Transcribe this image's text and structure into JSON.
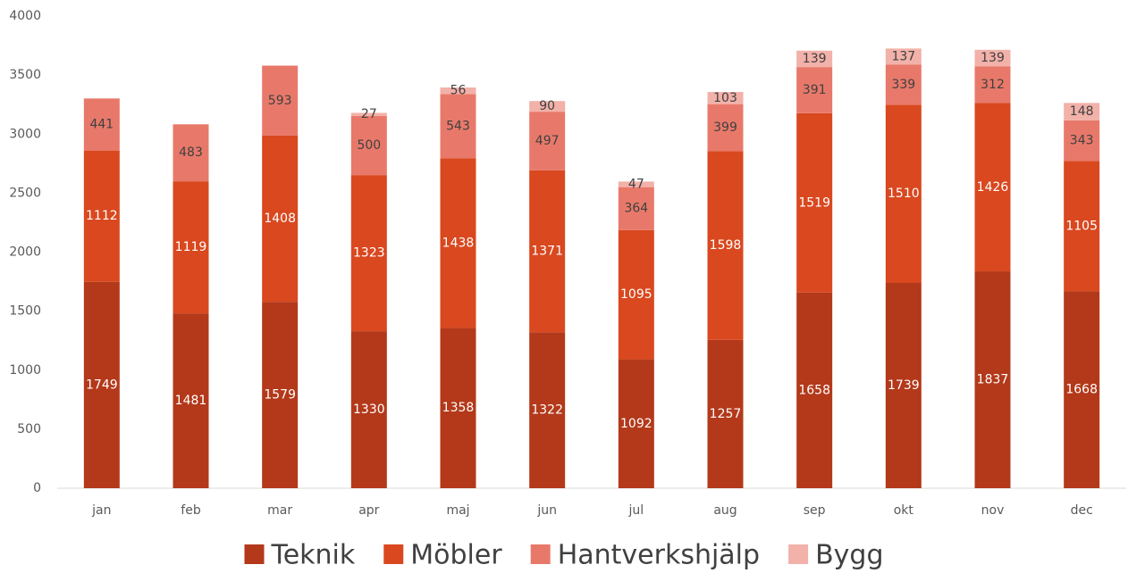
{
  "chart_data": {
    "type": "stacked_bar",
    "categories": [
      "jan",
      "feb",
      "mar",
      "apr",
      "maj",
      "jun",
      "jul",
      "aug",
      "sep",
      "okt",
      "nov",
      "dec"
    ],
    "series": [
      {
        "name": "Teknik",
        "color": "#b3391a",
        "label_color": "#ffffff",
        "values": [
          1749,
          1481,
          1579,
          1330,
          1358,
          1322,
          1092,
          1257,
          1658,
          1739,
          1837,
          1668
        ]
      },
      {
        "name": "Möbler",
        "color": "#d9481f",
        "label_color": "#ffffff",
        "values": [
          1112,
          1119,
          1408,
          1323,
          1438,
          1371,
          1095,
          1598,
          1519,
          1510,
          1426,
          1105
        ]
      },
      {
        "name": "Hantverkshjälp",
        "color": "#e8796a",
        "label_color": "#404040",
        "values": [
          441,
          483,
          593,
          500,
          543,
          497,
          364,
          399,
          391,
          339,
          312,
          343
        ]
      },
      {
        "name": "Bygg",
        "color": "#f2b1a9",
        "label_color": "#404040",
        "values": [
          null,
          null,
          null,
          27,
          56,
          90,
          47,
          103,
          139,
          137,
          139,
          148
        ]
      }
    ],
    "ylim": [
      0,
      4000
    ],
    "yticks": [
      0,
      500,
      1000,
      1500,
      2000,
      2500,
      3000,
      3500,
      4000
    ],
    "grid": false,
    "legend": "bottom"
  }
}
